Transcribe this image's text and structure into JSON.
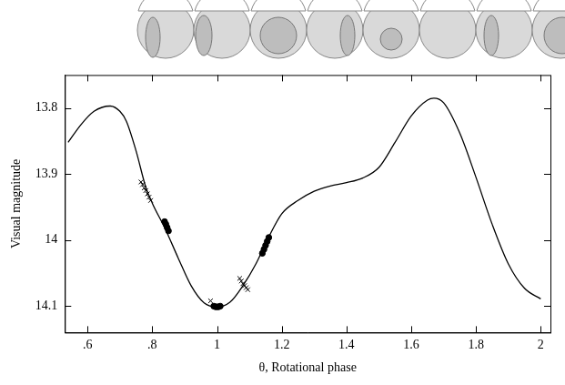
{
  "chart_data": {
    "type": "line",
    "x_label": "θ, Rotational phase",
    "y_label": "Visual magnitude",
    "xlim": [
      0.53,
      2.03
    ],
    "xticks": [
      {
        "value": 0.6,
        "label": ".6"
      },
      {
        "value": 0.8,
        "label": ".8"
      },
      1,
      1.2,
      1.4,
      1.6,
      1.8,
      2
    ],
    "ylim": [
      14.14,
      13.75
    ],
    "yticks": [
      13.8,
      13.9,
      14,
      14.1
    ],
    "grid": false,
    "series": [
      {
        "type": "line",
        "color": "#000000",
        "marker": "none",
        "line_style": "solid",
        "x": [
          0.54,
          0.58,
          0.62,
          0.67,
          0.7,
          0.72,
          0.75,
          0.78,
          0.8,
          0.84,
          0.88,
          0.92,
          0.96,
          1.0,
          1.04,
          1.08,
          1.12,
          1.16,
          1.2,
          1.25,
          1.3,
          1.35,
          1.4,
          1.45,
          1.5,
          1.55,
          1.6,
          1.65,
          1.67,
          1.7,
          1.75,
          1.8,
          1.85,
          1.9,
          1.95,
          2.0
        ],
        "values": [
          13.852,
          13.825,
          13.805,
          13.797,
          13.805,
          13.82,
          13.865,
          13.92,
          13.944,
          13.983,
          14.027,
          14.069,
          14.095,
          14.101,
          14.094,
          14.069,
          14.036,
          13.995,
          13.96,
          13.94,
          13.926,
          13.918,
          13.913,
          13.906,
          13.89,
          13.852,
          13.812,
          13.788,
          13.785,
          13.792,
          13.838,
          13.905,
          13.976,
          14.036,
          14.073,
          14.089
        ]
      },
      {
        "type": "scatter",
        "color": "#000000",
        "marker": "cross",
        "x": [
          0.765,
          0.77,
          0.775,
          0.78,
          0.785,
          0.79,
          0.795,
          0.98,
          1.07,
          1.075,
          1.08,
          1.085,
          1.09,
          1.095
        ],
        "values": [
          13.912,
          13.916,
          13.921,
          13.925,
          13.93,
          13.935,
          13.94,
          14.092,
          14.058,
          14.062,
          14.066,
          14.069,
          14.072,
          14.075
        ]
      },
      {
        "type": "scatter",
        "color": "#000000",
        "marker": "circle",
        "x": [
          0.838,
          0.842,
          0.846,
          0.85,
          0.99,
          0.995,
          1.0,
          1.005,
          1.01,
          1.14,
          1.145,
          1.15,
          1.155,
          1.16
        ],
        "values": [
          13.972,
          13.976,
          13.981,
          13.986,
          14.1,
          14.101,
          14.101,
          14.101,
          14.1,
          14.02,
          14.014,
          14.008,
          14.002,
          13.996
        ]
      }
    ]
  }
}
